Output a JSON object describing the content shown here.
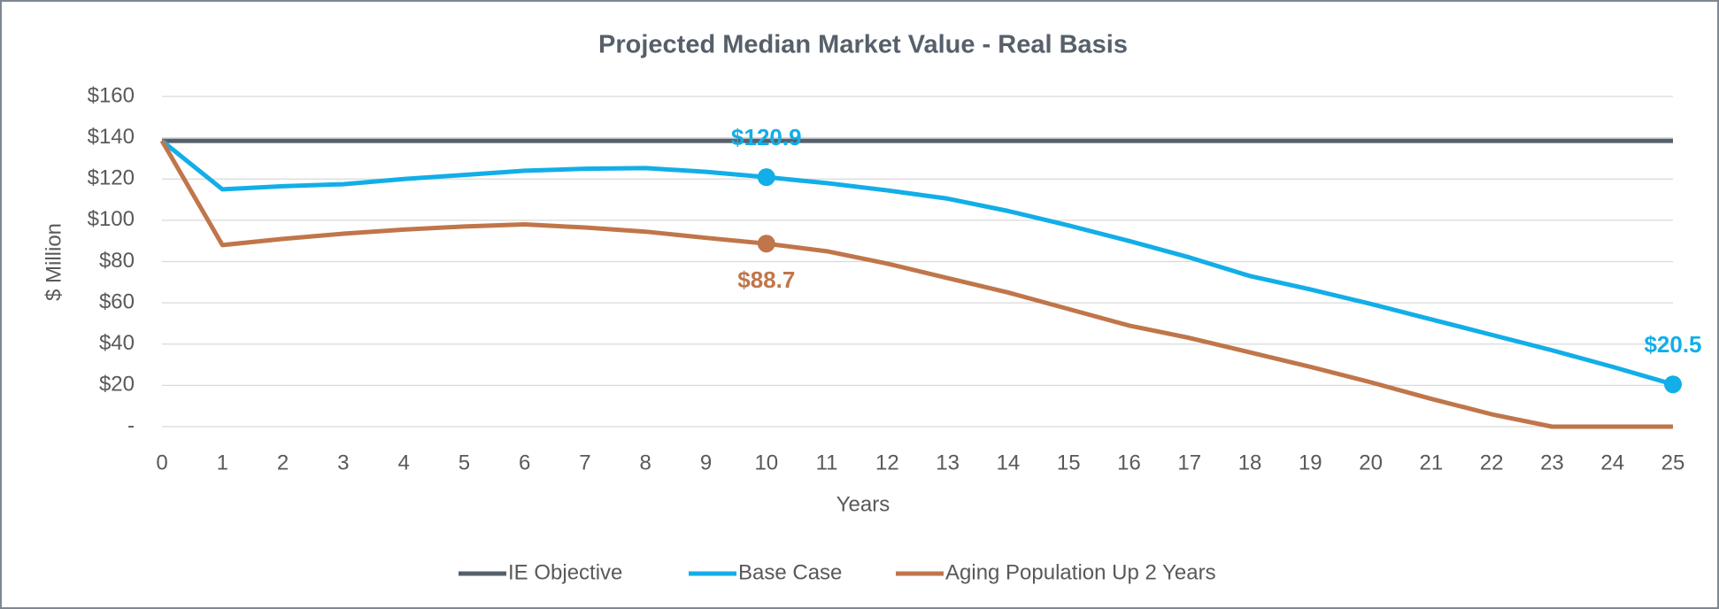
{
  "chart_data": {
    "type": "line",
    "title": "Projected Median Market Value - Real Basis",
    "x_label": "Years",
    "y_label": "$ Million",
    "x": [
      0,
      1,
      2,
      3,
      4,
      5,
      6,
      7,
      8,
      9,
      10,
      11,
      12,
      13,
      14,
      15,
      16,
      17,
      18,
      19,
      20,
      21,
      22,
      23,
      24,
      25
    ],
    "xlim": [
      0,
      25
    ],
    "xticks": [
      0,
      1,
      2,
      3,
      4,
      5,
      6,
      7,
      8,
      9,
      10,
      11,
      12,
      13,
      14,
      15,
      16,
      17,
      18,
      19,
      20,
      21,
      22,
      23,
      24,
      25
    ],
    "ylim": [
      0,
      160
    ],
    "yticks": [
      {
        "value": 0,
        "label": "-"
      },
      {
        "value": 20,
        "label": "$20"
      },
      {
        "value": 40,
        "label": "$40"
      },
      {
        "value": 60,
        "label": "$60"
      },
      {
        "value": 80,
        "label": "$80"
      },
      {
        "value": 100,
        "label": "$100"
      },
      {
        "value": 120,
        "label": "$120"
      },
      {
        "value": 140,
        "label": "$140"
      },
      {
        "value": 160,
        "label": "$160"
      }
    ],
    "grid": true,
    "legend": "bottom",
    "series": [
      {
        "name": "IE Objective",
        "color": "#56606b",
        "values": [
          138.5,
          138.5,
          138.5,
          138.5,
          138.5,
          138.5,
          138.5,
          138.5,
          138.5,
          138.5,
          138.5,
          138.5,
          138.5,
          138.5,
          138.5,
          138.5,
          138.5,
          138.5,
          138.5,
          138.5,
          138.5,
          138.5,
          138.5,
          138.5,
          138.5,
          138.5
        ]
      },
      {
        "name": "Base Case",
        "color": "#12aee8",
        "values": [
          138.5,
          115,
          116.5,
          117.5,
          120,
          122,
          124,
          125,
          125.3,
          123.5,
          120.9,
          118,
          114.5,
          110.5,
          104.5,
          97.5,
          90,
          82,
          73,
          66.5,
          59.5,
          52,
          44.5,
          37,
          29,
          20.5
        ],
        "value_labels": [
          null,
          null,
          null,
          null,
          null,
          null,
          null,
          null,
          null,
          null,
          "$120.9",
          null,
          null,
          null,
          null,
          null,
          null,
          null,
          null,
          null,
          null,
          null,
          null,
          null,
          null,
          "$20.5"
        ]
      },
      {
        "name": "Aging Population Up 2 Years",
        "color": "#c0764a",
        "values": [
          138.5,
          88,
          91,
          93.5,
          95.5,
          97,
          98,
          96.5,
          94.5,
          91.5,
          88.7,
          85,
          79,
          72,
          65,
          57,
          49,
          43,
          36,
          29,
          21.5,
          13.5,
          6,
          0,
          0,
          0
        ],
        "value_labels": [
          null,
          null,
          null,
          null,
          null,
          null,
          null,
          null,
          null,
          null,
          "$88.7",
          null,
          null,
          null,
          null,
          null,
          null,
          null,
          null,
          null,
          null,
          null,
          null,
          null,
          null,
          null
        ]
      }
    ]
  }
}
